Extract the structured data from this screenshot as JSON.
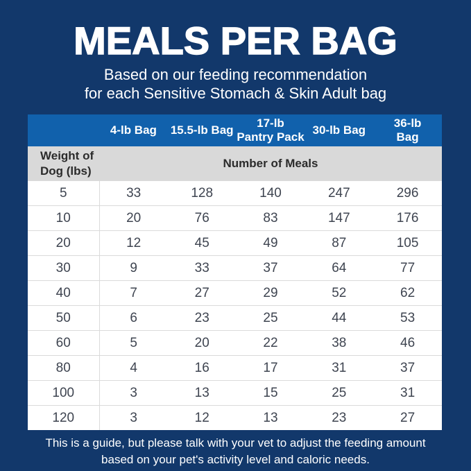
{
  "page": {
    "title": "MEALS PER BAG",
    "subtitle_lines": [
      "Based on our feeding recommendation",
      "for each Sensitive Stomach & Skin Adult bag"
    ],
    "footer_lines": [
      "This is a guide, but please talk with your vet to adjust the feeding amount",
      "based on your pet's activity level and caloric needs."
    ]
  },
  "colors": {
    "background_navy": "#12386B",
    "header_blue": "#1161AC",
    "subheader_gray": "#D9D9D9",
    "row_white": "#FFFFFF",
    "data_text": "#3E4450",
    "divider_gray": "#DADADA",
    "white_text": "#FFFFFF"
  },
  "table": {
    "corner_label": "",
    "columns": [
      "4-lb Bag",
      "15.5-lb Bag",
      "17-lb\nPantry Pack",
      "30-lb Bag",
      "36-lb\nBag"
    ],
    "row_header_label": "Weight of\nDog (lbs)",
    "span_label": "Number of Meals",
    "rows": [
      {
        "weight": "5",
        "values": [
          "33",
          "128",
          "140",
          "247",
          "296"
        ]
      },
      {
        "weight": "10",
        "values": [
          "20",
          "76",
          "83",
          "147",
          "176"
        ]
      },
      {
        "weight": "20",
        "values": [
          "12",
          "45",
          "49",
          "87",
          "105"
        ]
      },
      {
        "weight": "30",
        "values": [
          "9",
          "33",
          "37",
          "64",
          "77"
        ]
      },
      {
        "weight": "40",
        "values": [
          "7",
          "27",
          "29",
          "52",
          "62"
        ]
      },
      {
        "weight": "50",
        "values": [
          "6",
          "23",
          "25",
          "44",
          "53"
        ]
      },
      {
        "weight": "60",
        "values": [
          "5",
          "20",
          "22",
          "38",
          "46"
        ]
      },
      {
        "weight": "80",
        "values": [
          "4",
          "16",
          "17",
          "31",
          "37"
        ]
      },
      {
        "weight": "100",
        "values": [
          "3",
          "13",
          "15",
          "25",
          "31"
        ]
      },
      {
        "weight": "120",
        "values": [
          "3",
          "12",
          "13",
          "23",
          "27"
        ]
      }
    ]
  },
  "chart_data": {
    "type": "table",
    "title": "MEALS PER BAG",
    "subtitle": "Based on our feeding recommendation for each Sensitive Stomach & Skin Adult bag",
    "columns": [
      "Weight of Dog (lbs)",
      "4-lb Bag",
      "15.5-lb Bag",
      "17-lb Pantry Pack",
      "30-lb Bag",
      "36-lb Bag"
    ],
    "value_unit": "Number of Meals",
    "rows": [
      [
        5,
        33,
        128,
        140,
        247,
        296
      ],
      [
        10,
        20,
        76,
        83,
        147,
        176
      ],
      [
        20,
        12,
        45,
        49,
        87,
        105
      ],
      [
        30,
        9,
        33,
        37,
        64,
        77
      ],
      [
        40,
        7,
        27,
        29,
        52,
        62
      ],
      [
        50,
        6,
        23,
        25,
        44,
        53
      ],
      [
        60,
        5,
        20,
        22,
        38,
        46
      ],
      [
        80,
        4,
        16,
        17,
        31,
        37
      ],
      [
        100,
        3,
        13,
        15,
        25,
        31
      ],
      [
        120,
        3,
        12,
        13,
        23,
        27
      ]
    ],
    "note": "This is a guide, but please talk with your vet to adjust the feeding amount based on your pet's activity level and caloric needs."
  }
}
